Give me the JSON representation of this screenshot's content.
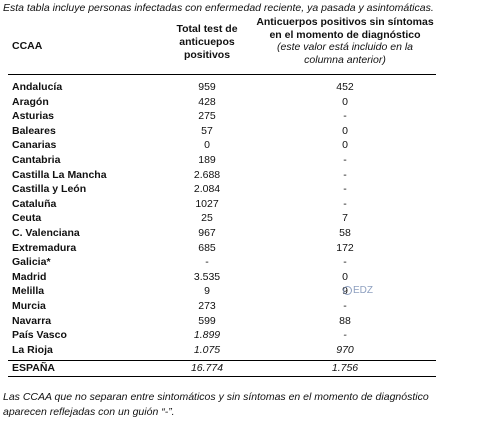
{
  "caption_top": "Esta tabla incluye personas infectadas con enfermedad reciente, ya pasada y asintomáticas.",
  "headers": {
    "ccaa": "CCAA",
    "test_line1": "Total test de",
    "test_line2": "anticuepos",
    "test_line3": "positivos",
    "anti_line1": "Anticuerpos positivos sin síntomas",
    "anti_line2": "en el momento de diagnóstico",
    "anti_line3": "(este valor está incluido en la",
    "anti_line4": "columna anterior)"
  },
  "rows": [
    {
      "ccaa": "Andalucía",
      "test": "959",
      "anti": "452"
    },
    {
      "ccaa": "Aragón",
      "test": "428",
      "anti": "0"
    },
    {
      "ccaa": "Asturias",
      "test": "275",
      "anti": "-"
    },
    {
      "ccaa": "Baleares",
      "test": "57",
      "anti": "0"
    },
    {
      "ccaa": "Canarias",
      "test": "0",
      "anti": "0"
    },
    {
      "ccaa": "Cantabria",
      "test": "189",
      "anti": "-"
    },
    {
      "ccaa": "Castilla La Mancha",
      "test": "2.688",
      "anti": "-"
    },
    {
      "ccaa": "Castilla y León",
      "test": "2.084",
      "anti": "-"
    },
    {
      "ccaa": "Cataluña",
      "test": "1027",
      "anti": "-"
    },
    {
      "ccaa": "Ceuta",
      "test": "25",
      "anti": "7"
    },
    {
      "ccaa": "C. Valenciana",
      "test": "967",
      "anti": "58"
    },
    {
      "ccaa": "Extremadura",
      "test": "685",
      "anti": "172"
    },
    {
      "ccaa": "Galicia*",
      "test": "-",
      "anti": "-"
    },
    {
      "ccaa": "Madrid",
      "test": "3.535",
      "anti": "0"
    },
    {
      "ccaa": "Melilla",
      "test": "9",
      "anti": "9"
    },
    {
      "ccaa": "Murcia",
      "test": "273",
      "anti": "-"
    },
    {
      "ccaa": "Navarra",
      "test": "599",
      "anti": "88"
    },
    {
      "ccaa": "País Vasco",
      "test": "1.899",
      "anti": "-"
    },
    {
      "ccaa": "La Rioja",
      "test": "1.075",
      "anti": "970"
    }
  ],
  "total": {
    "ccaa": "ESPAÑA",
    "test": "16.774",
    "anti": "1.756"
  },
  "watermark": "EDZ",
  "caption_bottom": "Las CCAA que no separan entre sintomáticos y sin síntomas en el momento de diagnóstico aparecen reflejadas con un guión “-”."
}
